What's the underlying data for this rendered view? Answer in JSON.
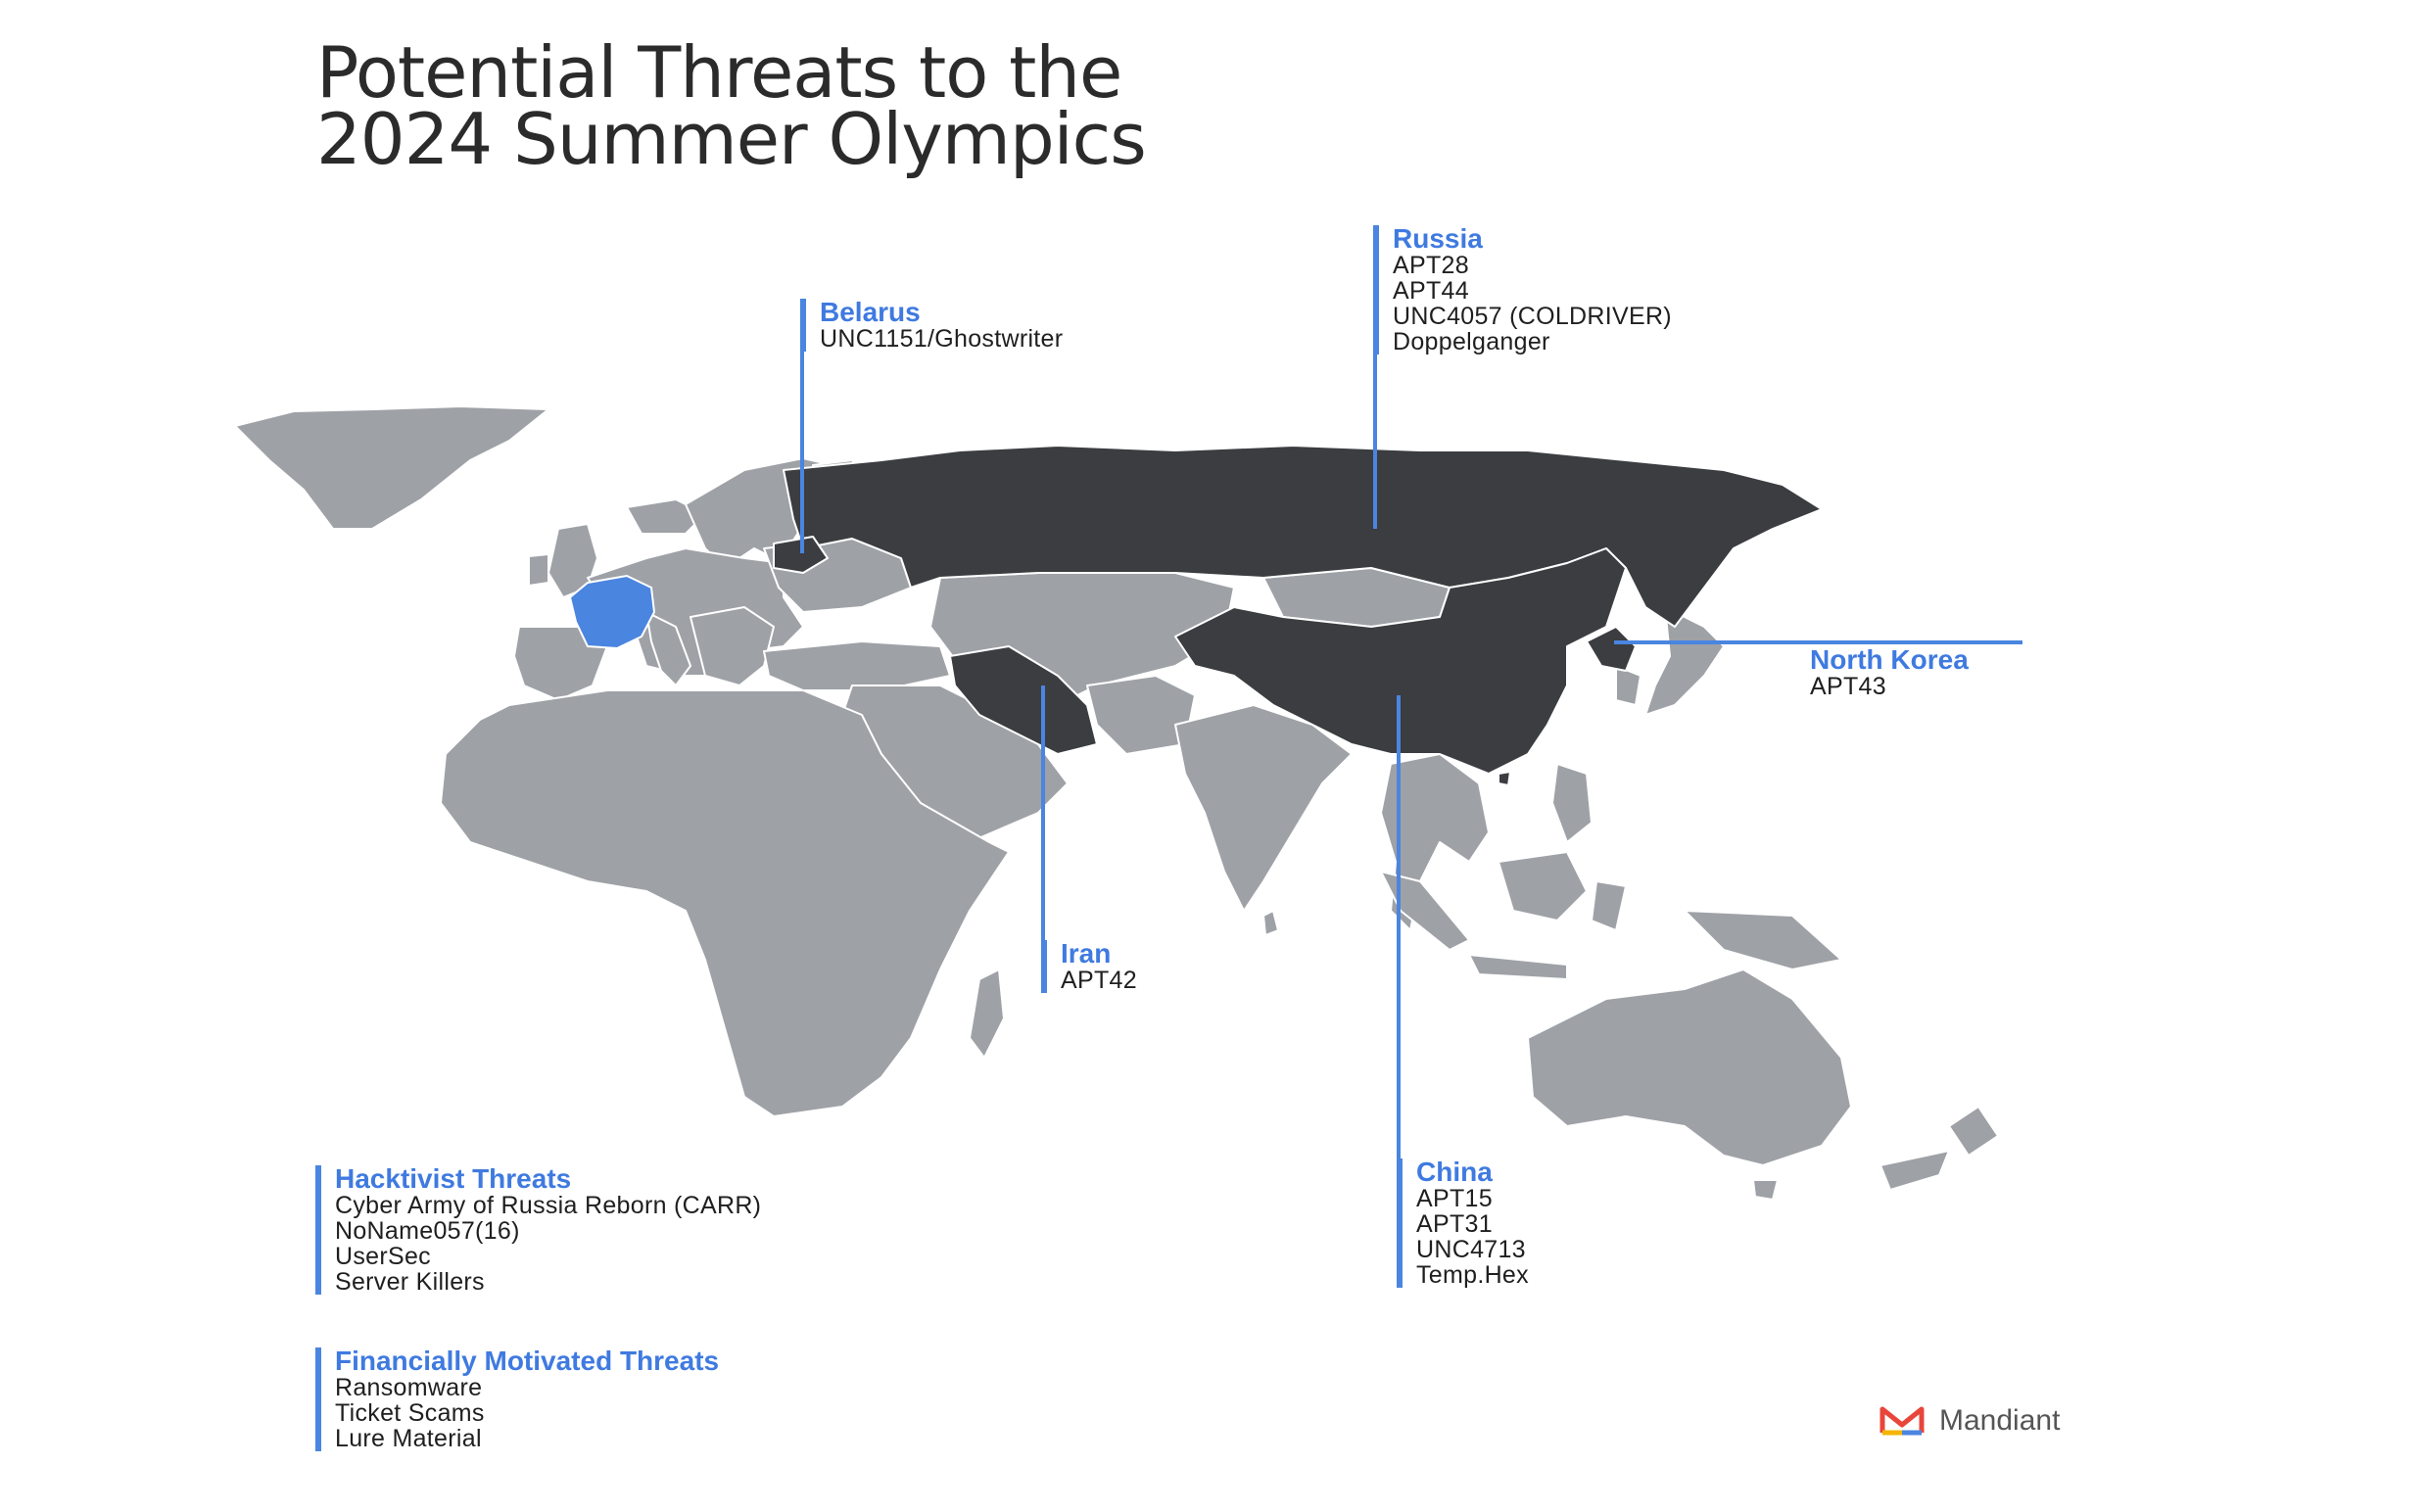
{
  "title": {
    "line1": "Potential Threats to the",
    "line2": "2024 Summer Olympics"
  },
  "colors": {
    "land": "#9ea1a6",
    "threat_country": "#3b3d40",
    "host_country": "#4a85e0",
    "accent": "#3f7ae0",
    "leader_line": "#4a85e0"
  },
  "map": {
    "host_country": "France",
    "highlighted_countries": [
      "Russia",
      "Belarus",
      "Iran",
      "China",
      "North Korea"
    ]
  },
  "regions": {
    "belarus": {
      "name": "Belarus",
      "actors": [
        "UNC1151/Ghostwriter"
      ]
    },
    "russia": {
      "name": "Russia",
      "actors": [
        "APT28",
        "APT44",
        "UNC4057 (COLDRIVER)",
        "Doppelganger"
      ]
    },
    "north_korea": {
      "name": "North Korea",
      "actors": [
        "APT43"
      ]
    },
    "iran": {
      "name": "Iran",
      "actors": [
        "APT42"
      ]
    },
    "china": {
      "name": "China",
      "actors": [
        "APT15",
        "APT31",
        "UNC4713",
        "Temp.Hex"
      ]
    }
  },
  "categories": {
    "hacktivist": {
      "name": "Hacktivist Threats",
      "items": [
        "Cyber Army of Russia Reborn (CARR)",
        "NoName057(16)",
        "UserSec",
        "Server Killers"
      ]
    },
    "financial": {
      "name": "Financially Motivated Threats",
      "items": [
        "Ransomware",
        "Ticket Scams",
        "Lure Material"
      ]
    }
  },
  "brand": {
    "name": "Mandiant",
    "icon": "mandiant-logo-icon"
  }
}
